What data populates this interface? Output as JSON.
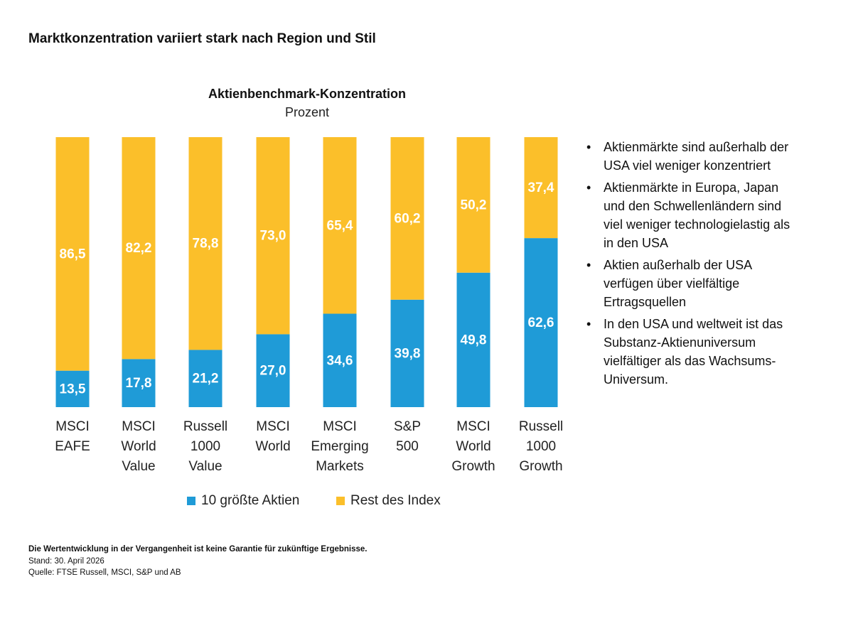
{
  "header": {
    "title": "Marktkonzentration variiert stark nach Region und Stil"
  },
  "chart_data": {
    "type": "stacked_bar",
    "title": "Aktienbenchmark-Konzentration",
    "subtitle": "Prozent",
    "categories": [
      [
        "MSCI",
        "EAFE"
      ],
      [
        "MSCI",
        "World",
        "Value"
      ],
      [
        "Russell",
        "1000",
        "Value"
      ],
      [
        "MSCI",
        "World"
      ],
      [
        "MSCI",
        "Emerging",
        "Markets"
      ],
      [
        "S&P",
        "500"
      ],
      [
        "MSCI",
        "World",
        "Growth"
      ],
      [
        "Russell",
        "1000",
        "Growth"
      ]
    ],
    "ylim": [
      0,
      100
    ],
    "series": [
      {
        "name": "10 größte Aktien",
        "color": "#1f9bd7",
        "values": [
          13.5,
          17.8,
          21.2,
          27.0,
          34.6,
          39.8,
          49.8,
          62.6
        ],
        "value_labels": [
          "13,5",
          "17,8",
          "21,2",
          "27,0",
          "34,6",
          "39,8",
          "49,8",
          "62,6"
        ]
      },
      {
        "name": "Rest des Index",
        "color": "#fbbf2a",
        "values": [
          86.5,
          82.2,
          78.8,
          73.0,
          65.4,
          60.2,
          50.2,
          37.4
        ],
        "value_labels": [
          "86,5",
          "82,2",
          "78,8",
          "73,0",
          "65,4",
          "60,2",
          "50,2",
          "37,4"
        ]
      }
    ]
  },
  "bullets": [
    "Aktienmärkte sind außerhalb der USA viel weniger konzentriert",
    "Aktienmärkte in Europa, Japan und den Schwellenländern sind viel weniger technologielastig als in den USA",
    "Aktien außerhalb der USA verfügen über vielfältige Ertragsquellen",
    "In den USA und weltweit ist das Substanz-Aktienuniversum vielfältiger als das Wachsums-Universum."
  ],
  "footer": [
    "Die Wertentwicklung in der Vergangenheit ist keine Garantie für zukünftige Ergebnisse.",
    "Stand: 30. April 2026",
    "Quelle: FTSE Russell, MSCI, S&P und AB"
  ]
}
